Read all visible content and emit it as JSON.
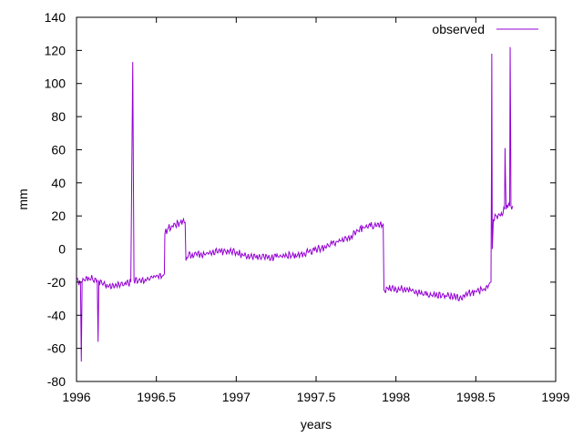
{
  "chart_data": {
    "type": "line",
    "title": "",
    "xlabel": "years",
    "ylabel": "mm",
    "xlim": [
      1996,
      1999
    ],
    "ylim": [
      -80,
      140
    ],
    "grid": false,
    "legend_position": "top-right",
    "x_ticks": [
      "1996",
      "1996.5",
      "1997",
      "1997.5",
      "1998",
      "1998.5",
      "1999"
    ],
    "y_ticks": [
      "-80",
      "-60",
      "-40",
      "-20",
      "0",
      "20",
      "40",
      "60",
      "80",
      "100",
      "120",
      "140"
    ],
    "series": [
      {
        "name": "observed",
        "color": "#9400d3",
        "points": [
          [
            1996.0,
            -17
          ],
          [
            1996.01,
            -19
          ],
          [
            1996.025,
            -21
          ],
          [
            1996.03,
            -68
          ],
          [
            1996.035,
            -20
          ],
          [
            1996.05,
            -19
          ],
          [
            1996.08,
            -18
          ],
          [
            1996.1,
            -18
          ],
          [
            1996.13,
            -19
          ],
          [
            1996.135,
            -56
          ],
          [
            1996.14,
            -19
          ],
          [
            1996.16,
            -21
          ],
          [
            1996.2,
            -23
          ],
          [
            1996.25,
            -22
          ],
          [
            1996.3,
            -21
          ],
          [
            1996.34,
            -20
          ],
          [
            1996.352,
            113
          ],
          [
            1996.356,
            46
          ],
          [
            1996.36,
            -19
          ],
          [
            1996.4,
            -19
          ],
          [
            1996.45,
            -18
          ],
          [
            1996.5,
            -16
          ],
          [
            1996.54,
            -16
          ],
          [
            1996.55,
            -15
          ],
          [
            1996.553,
            9
          ],
          [
            1996.57,
            12
          ],
          [
            1996.6,
            14
          ],
          [
            1996.65,
            16
          ],
          [
            1996.68,
            16
          ],
          [
            1996.685,
            -7
          ],
          [
            1996.7,
            -4
          ],
          [
            1996.75,
            -3
          ],
          [
            1996.8,
            -3
          ],
          [
            1996.85,
            -2
          ],
          [
            1996.9,
            -2
          ],
          [
            1996.95,
            -1
          ],
          [
            1997.0,
            -2
          ],
          [
            1997.05,
            -4
          ],
          [
            1997.1,
            -5
          ],
          [
            1997.15,
            -5
          ],
          [
            1997.2,
            -5
          ],
          [
            1997.25,
            -5
          ],
          [
            1997.3,
            -4
          ],
          [
            1997.35,
            -4
          ],
          [
            1997.4,
            -3
          ],
          [
            1997.45,
            -2
          ],
          [
            1997.5,
            0
          ],
          [
            1997.55,
            1
          ],
          [
            1997.6,
            3
          ],
          [
            1997.65,
            5
          ],
          [
            1997.7,
            7
          ],
          [
            1997.75,
            10
          ],
          [
            1997.8,
            13
          ],
          [
            1997.85,
            14
          ],
          [
            1997.9,
            15
          ],
          [
            1997.92,
            15
          ],
          [
            1997.925,
            -25
          ],
          [
            1997.95,
            -24
          ],
          [
            1998.0,
            -24
          ],
          [
            1998.05,
            -24
          ],
          [
            1998.1,
            -25
          ],
          [
            1998.15,
            -27
          ],
          [
            1998.2,
            -28
          ],
          [
            1998.25,
            -28
          ],
          [
            1998.3,
            -28
          ],
          [
            1998.35,
            -28
          ],
          [
            1998.4,
            -29
          ],
          [
            1998.45,
            -27
          ],
          [
            1998.5,
            -26
          ],
          [
            1998.55,
            -24
          ],
          [
            1998.58,
            -22
          ],
          [
            1998.595,
            -20
          ],
          [
            1998.598,
            48
          ],
          [
            1998.6,
            118
          ],
          [
            1998.603,
            0
          ],
          [
            1998.61,
            18
          ],
          [
            1998.63,
            20
          ],
          [
            1998.66,
            22
          ],
          [
            1998.68,
            24
          ],
          [
            1998.683,
            61
          ],
          [
            1998.686,
            42
          ],
          [
            1998.69,
            24
          ],
          [
            1998.7,
            25
          ],
          [
            1998.712,
            26
          ],
          [
            1998.715,
            122
          ],
          [
            1998.718,
            72
          ],
          [
            1998.72,
            26
          ],
          [
            1998.73,
            26
          ]
        ]
      }
    ]
  }
}
